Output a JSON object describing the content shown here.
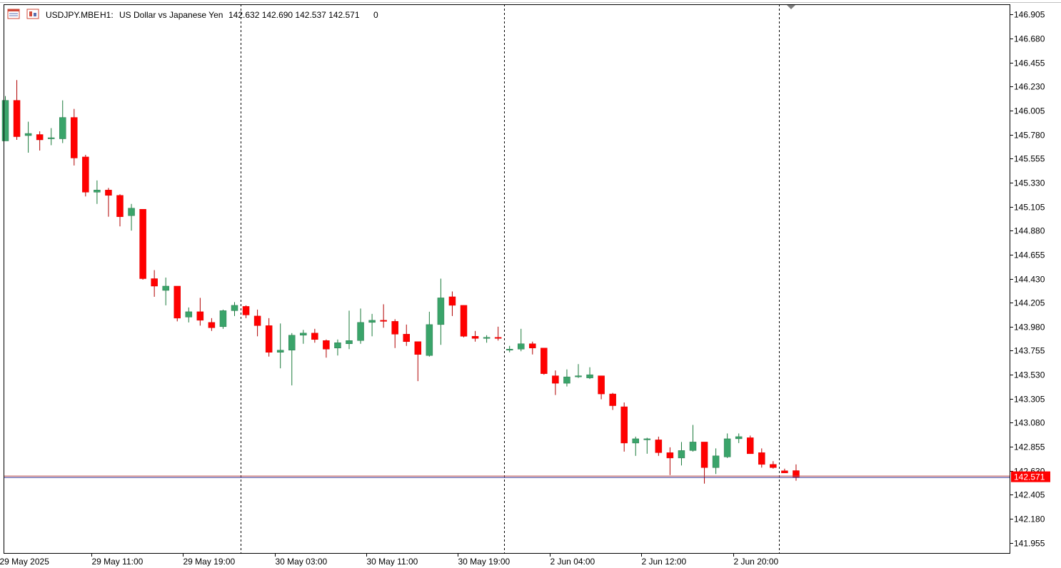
{
  "header": {
    "symbol": "USDJPY.MBE",
    "timeframe": "H1:",
    "description": "US Dollar vs Japanese Yen",
    "ohlc": "142.632 142.690 142.537 142.571",
    "volume": "0"
  },
  "colors": {
    "bull": "#3aa46a",
    "bear": "#ff0000",
    "wick_bull": "#1a7a3a",
    "wick_bear": "#b00000",
    "bid_line": "#2b2b8f",
    "ask_line": "#c0504d",
    "price_label_bg": "#ff0000",
    "background": "#ffffff",
    "axis": "#000000"
  },
  "chart_data": {
    "type": "candlestick",
    "symbol": "USDJPY.MBE",
    "timeframe": "H1",
    "ylim": [
      141.86,
      147.0
    ],
    "y_ticks": [
      "146.905",
      "146.680",
      "146.455",
      "146.230",
      "146.005",
      "145.780",
      "145.555",
      "145.330",
      "145.105",
      "144.880",
      "144.655",
      "144.430",
      "144.205",
      "143.980",
      "143.755",
      "143.530",
      "143.305",
      "143.080",
      "142.855",
      "142.630",
      "142.405",
      "142.180",
      "141.955"
    ],
    "x_labels": [
      {
        "index": 0,
        "label": "29 May 2025"
      },
      {
        "index": 8,
        "label": "29 May 11:00"
      },
      {
        "index": 16,
        "label": "29 May 19:00"
      },
      {
        "index": 24,
        "label": "30 May 03:00"
      },
      {
        "index": 32,
        "label": "30 May 11:00"
      },
      {
        "index": 40,
        "label": "30 May 19:00"
      },
      {
        "index": 48,
        "label": "2 Jun 04:00"
      },
      {
        "index": 56,
        "label": "2 Jun 12:00"
      },
      {
        "index": 64,
        "label": "2 Jun 20:00"
      }
    ],
    "day_separators": [
      21,
      44,
      68
    ],
    "current_price": "142.571",
    "candles": [
      {
        "o": 145.72,
        "h": 146.14,
        "l": 145.72,
        "c": 146.1
      },
      {
        "o": 146.1,
        "h": 146.29,
        "l": 145.73,
        "c": 145.76
      },
      {
        "o": 145.77,
        "h": 145.9,
        "l": 145.61,
        "c": 145.79
      },
      {
        "o": 145.78,
        "h": 145.81,
        "l": 145.63,
        "c": 145.73
      },
      {
        "o": 145.74,
        "h": 145.84,
        "l": 145.68,
        "c": 145.75
      },
      {
        "o": 145.74,
        "h": 146.1,
        "l": 145.7,
        "c": 145.94
      },
      {
        "o": 145.94,
        "h": 146.02,
        "l": 145.49,
        "c": 145.56
      },
      {
        "o": 145.57,
        "h": 145.59,
        "l": 145.2,
        "c": 145.24
      },
      {
        "o": 145.24,
        "h": 145.35,
        "l": 145.13,
        "c": 145.26
      },
      {
        "o": 145.26,
        "h": 145.28,
        "l": 145.01,
        "c": 145.21
      },
      {
        "o": 145.21,
        "h": 145.22,
        "l": 144.92,
        "c": 145.01
      },
      {
        "o": 145.02,
        "h": 145.13,
        "l": 144.88,
        "c": 145.09
      },
      {
        "o": 145.08,
        "h": 145.08,
        "l": 144.42,
        "c": 144.43
      },
      {
        "o": 144.43,
        "h": 144.51,
        "l": 144.26,
        "c": 144.36
      },
      {
        "o": 144.32,
        "h": 144.44,
        "l": 144.18,
        "c": 144.36
      },
      {
        "o": 144.36,
        "h": 144.36,
        "l": 144.03,
        "c": 144.06
      },
      {
        "o": 144.07,
        "h": 144.16,
        "l": 144.02,
        "c": 144.12
      },
      {
        "o": 144.12,
        "h": 144.25,
        "l": 143.99,
        "c": 144.04
      },
      {
        "o": 144.02,
        "h": 144.06,
        "l": 143.94,
        "c": 143.97
      },
      {
        "o": 143.98,
        "h": 144.14,
        "l": 143.96,
        "c": 144.13
      },
      {
        "o": 144.13,
        "h": 144.21,
        "l": 144.08,
        "c": 144.18
      },
      {
        "o": 144.17,
        "h": 144.18,
        "l": 144.06,
        "c": 144.09
      },
      {
        "o": 144.08,
        "h": 144.14,
        "l": 143.89,
        "c": 143.99
      },
      {
        "o": 143.99,
        "h": 144.06,
        "l": 143.7,
        "c": 143.74
      },
      {
        "o": 143.74,
        "h": 144.01,
        "l": 143.59,
        "c": 143.76
      },
      {
        "o": 143.76,
        "h": 143.92,
        "l": 143.43,
        "c": 143.9
      },
      {
        "o": 143.9,
        "h": 143.95,
        "l": 143.82,
        "c": 143.92
      },
      {
        "o": 143.92,
        "h": 143.96,
        "l": 143.83,
        "c": 143.86
      },
      {
        "o": 143.85,
        "h": 143.86,
        "l": 143.69,
        "c": 143.77
      },
      {
        "o": 143.78,
        "h": 143.86,
        "l": 143.71,
        "c": 143.83
      },
      {
        "o": 143.82,
        "h": 144.13,
        "l": 143.77,
        "c": 143.85
      },
      {
        "o": 143.85,
        "h": 144.15,
        "l": 143.82,
        "c": 144.02
      },
      {
        "o": 144.02,
        "h": 144.1,
        "l": 143.89,
        "c": 144.04
      },
      {
        "o": 144.04,
        "h": 144.19,
        "l": 143.97,
        "c": 144.03
      },
      {
        "o": 144.03,
        "h": 144.05,
        "l": 143.78,
        "c": 143.91
      },
      {
        "o": 143.91,
        "h": 144.0,
        "l": 143.8,
        "c": 143.84
      },
      {
        "o": 143.84,
        "h": 143.84,
        "l": 143.47,
        "c": 143.72
      },
      {
        "o": 143.71,
        "h": 144.12,
        "l": 143.7,
        "c": 144.0
      },
      {
        "o": 144.0,
        "h": 144.43,
        "l": 143.81,
        "c": 144.25
      },
      {
        "o": 144.26,
        "h": 144.31,
        "l": 144.08,
        "c": 144.18
      },
      {
        "o": 144.18,
        "h": 144.18,
        "l": 143.88,
        "c": 143.89
      },
      {
        "o": 143.89,
        "h": 143.94,
        "l": 143.84,
        "c": 143.87
      },
      {
        "o": 143.87,
        "h": 143.9,
        "l": 143.83,
        "c": 143.88
      },
      {
        "o": 143.88,
        "h": 143.98,
        "l": 143.85,
        "c": 143.87
      },
      {
        "o": 143.76,
        "h": 143.8,
        "l": 143.74,
        "c": 143.77
      },
      {
        "o": 143.77,
        "h": 143.96,
        "l": 143.75,
        "c": 143.82
      },
      {
        "o": 143.82,
        "h": 143.84,
        "l": 143.72,
        "c": 143.78
      },
      {
        "o": 143.78,
        "h": 143.78,
        "l": 143.53,
        "c": 143.54
      },
      {
        "o": 143.52,
        "h": 143.57,
        "l": 143.34,
        "c": 143.45
      },
      {
        "o": 143.45,
        "h": 143.58,
        "l": 143.42,
        "c": 143.51
      },
      {
        "o": 143.51,
        "h": 143.63,
        "l": 143.5,
        "c": 143.52
      },
      {
        "o": 143.5,
        "h": 143.6,
        "l": 143.49,
        "c": 143.53
      },
      {
        "o": 143.52,
        "h": 143.52,
        "l": 143.3,
        "c": 143.35
      },
      {
        "o": 143.35,
        "h": 143.36,
        "l": 143.2,
        "c": 143.24
      },
      {
        "o": 143.23,
        "h": 143.27,
        "l": 142.81,
        "c": 142.89
      },
      {
        "o": 142.89,
        "h": 142.95,
        "l": 142.77,
        "c": 142.93
      },
      {
        "o": 142.92,
        "h": 142.94,
        "l": 142.79,
        "c": 142.93
      },
      {
        "o": 142.92,
        "h": 142.95,
        "l": 142.77,
        "c": 142.8
      },
      {
        "o": 142.8,
        "h": 142.85,
        "l": 142.59,
        "c": 142.75
      },
      {
        "o": 142.75,
        "h": 142.9,
        "l": 142.68,
        "c": 142.82
      },
      {
        "o": 142.82,
        "h": 143.06,
        "l": 142.81,
        "c": 142.9
      },
      {
        "o": 142.9,
        "h": 142.9,
        "l": 142.51,
        "c": 142.66
      },
      {
        "o": 142.66,
        "h": 142.84,
        "l": 142.6,
        "c": 142.77
      },
      {
        "o": 142.76,
        "h": 142.98,
        "l": 142.75,
        "c": 142.93
      },
      {
        "o": 142.93,
        "h": 142.98,
        "l": 142.89,
        "c": 142.95
      },
      {
        "o": 142.94,
        "h": 142.96,
        "l": 142.79,
        "c": 142.79
      },
      {
        "o": 142.8,
        "h": 142.84,
        "l": 142.66,
        "c": 142.69
      },
      {
        "o": 142.69,
        "h": 142.72,
        "l": 142.65,
        "c": 142.66
      },
      {
        "o": 142.63,
        "h": 142.65,
        "l": 142.61,
        "c": 142.61
      },
      {
        "o": 142.632,
        "h": 142.69,
        "l": 142.537,
        "c": 142.571
      }
    ]
  }
}
